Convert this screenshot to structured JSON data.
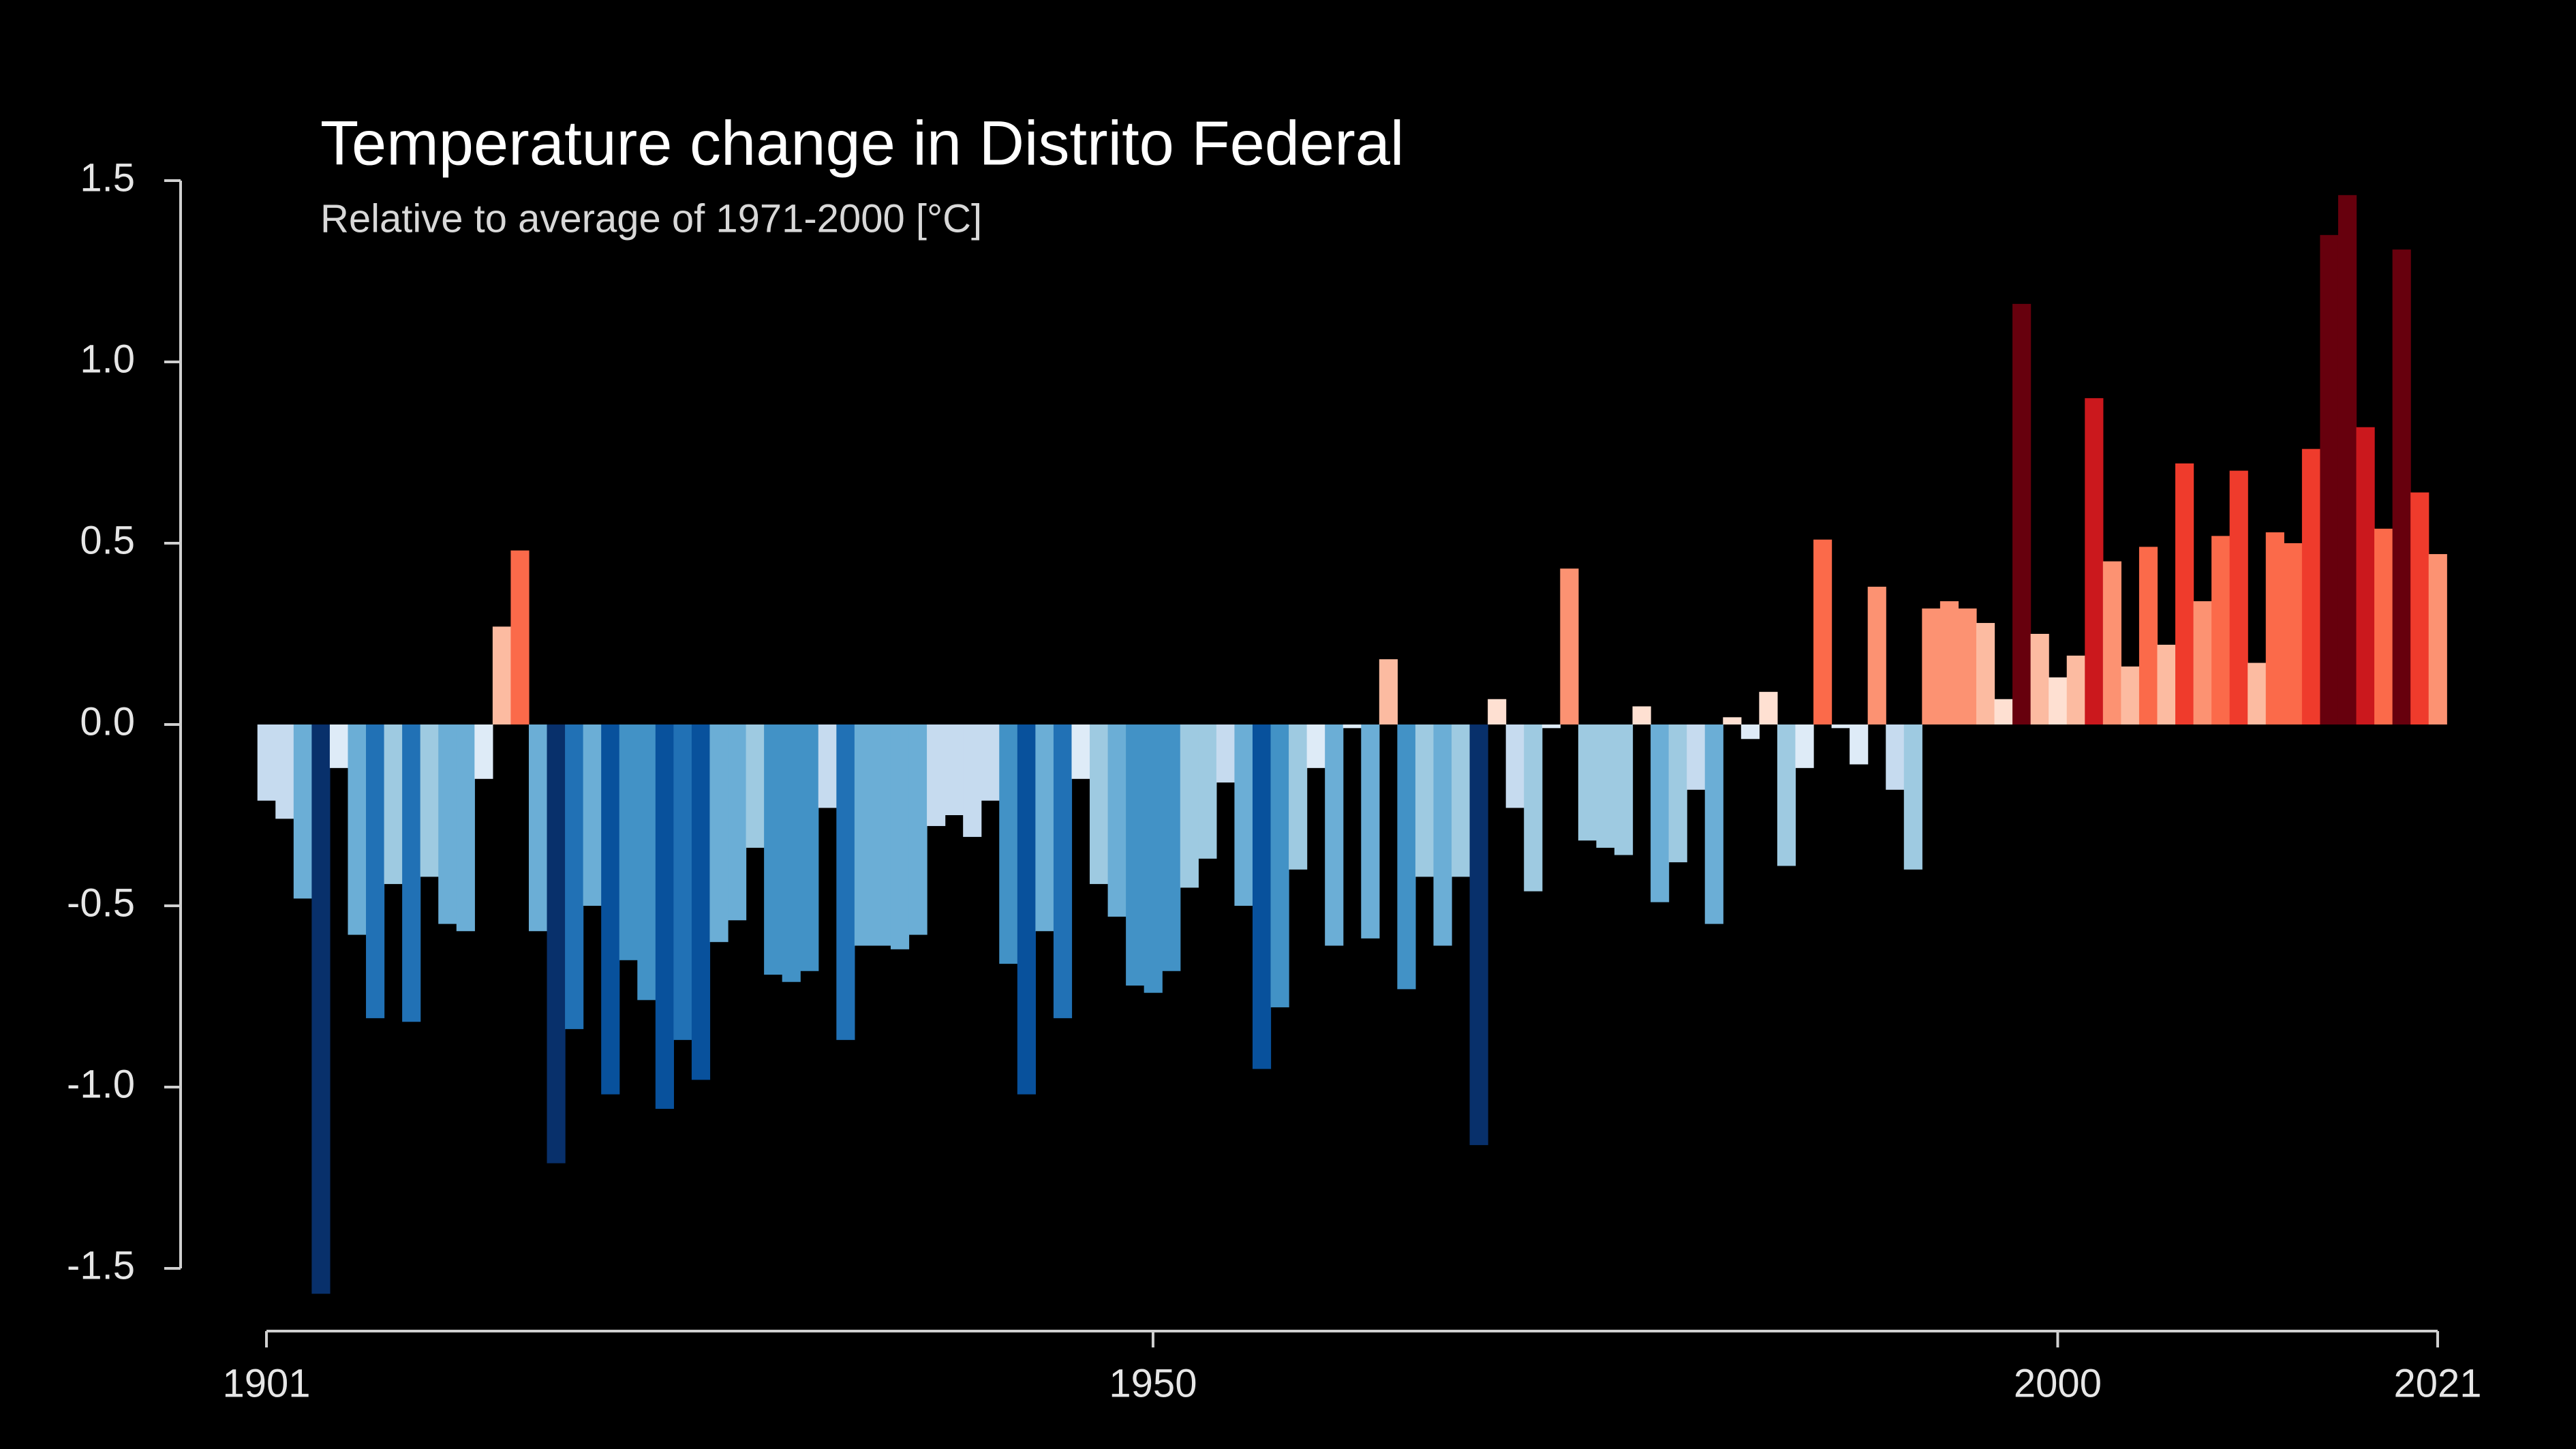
{
  "chart_data": {
    "type": "bar",
    "title": "Temperature change in Distrito Federal",
    "subtitle": "Relative to average of 1971-2000  [°C]",
    "x": [
      1901,
      1902,
      1903,
      1904,
      1905,
      1906,
      1907,
      1908,
      1909,
      1910,
      1911,
      1912,
      1913,
      1914,
      1915,
      1916,
      1917,
      1918,
      1919,
      1920,
      1921,
      1922,
      1923,
      1924,
      1925,
      1926,
      1927,
      1928,
      1929,
      1930,
      1931,
      1932,
      1933,
      1934,
      1935,
      1936,
      1937,
      1938,
      1939,
      1940,
      1941,
      1942,
      1943,
      1944,
      1945,
      1946,
      1947,
      1948,
      1949,
      1950,
      1951,
      1952,
      1953,
      1954,
      1955,
      1956,
      1957,
      1958,
      1959,
      1960,
      1961,
      1962,
      1963,
      1964,
      1965,
      1966,
      1967,
      1968,
      1969,
      1970,
      1971,
      1972,
      1973,
      1974,
      1975,
      1976,
      1977,
      1978,
      1979,
      1980,
      1981,
      1982,
      1983,
      1984,
      1985,
      1986,
      1987,
      1988,
      1989,
      1990,
      1991,
      1992,
      1993,
      1994,
      1995,
      1996,
      1997,
      1998,
      1999,
      2000,
      2001,
      2002,
      2003,
      2004,
      2005,
      2006,
      2007,
      2008,
      2009,
      2010,
      2011,
      2012,
      2013,
      2014,
      2015,
      2016,
      2017,
      2018,
      2019,
      2020,
      2021
    ],
    "values": [
      -0.21,
      -0.26,
      -0.48,
      -1.57,
      -0.12,
      -0.58,
      -0.81,
      -0.44,
      -0.82,
      -0.42,
      -0.55,
      -0.57,
      -0.15,
      0.27,
      0.48,
      -0.57,
      -1.21,
      -0.84,
      -0.5,
      -1.02,
      -0.65,
      -0.76,
      -1.06,
      -0.87,
      -0.98,
      -0.6,
      -0.54,
      -0.34,
      -0.69,
      -0.71,
      -0.68,
      -0.23,
      -0.87,
      -0.61,
      -0.61,
      -0.62,
      -0.58,
      -0.28,
      -0.25,
      -0.31,
      -0.21,
      -0.66,
      -1.02,
      -0.57,
      -0.81,
      -0.15,
      -0.44,
      -0.53,
      -0.72,
      -0.74,
      -0.68,
      -0.45,
      -0.37,
      -0.16,
      -0.5,
      -0.95,
      -0.78,
      -0.4,
      -0.12,
      -0.61,
      -0.01,
      -0.59,
      0.18,
      -0.73,
      -0.42,
      -0.61,
      -0.42,
      -1.16,
      0.07,
      -0.23,
      -0.46,
      -0.01,
      0.43,
      -0.32,
      -0.34,
      -0.36,
      0.05,
      -0.49,
      -0.38,
      -0.18,
      -0.55,
      0.02,
      -0.04,
      0.09,
      -0.39,
      -0.12,
      0.51,
      -0.01,
      -0.11,
      0.38,
      -0.18,
      -0.4,
      0.32,
      0.34,
      0.32,
      0.28,
      0.07,
      1.16,
      0.25,
      0.13,
      0.19,
      0.9,
      0.45,
      0.16,
      0.49,
      0.22,
      0.72,
      0.34,
      0.52,
      0.7,
      0.17,
      0.53,
      0.5,
      0.76,
      1.35,
      1.46,
      0.82,
      0.54,
      1.31,
      0.64,
      0.47
    ],
    "colors": [
      "#08306b",
      "#08519c",
      "#2171b5",
      "#4292c6",
      "#6baed6",
      "#9ecae1",
      "#c6dbef",
      "#deebf7",
      "#fee0d2",
      "#fcbba1",
      "#fc9272",
      "#fb6a4a",
      "#ef3b2c",
      "#cb181d",
      "#a50f15",
      "#67000d"
    ],
    "xlim": [
      1901,
      2021
    ],
    "xticks": [
      1901,
      1950,
      2000,
      2021
    ],
    "ylim": [
      -1.5,
      1.5
    ],
    "yticks": [
      1.5,
      {
        "value": 1,
        "label": "1.0"
      },
      0.5,
      {
        "value": 0,
        "label": "0.0"
      },
      -0.5,
      {
        "value": -1,
        "label": "-1.0"
      },
      -1.5
    ]
  }
}
